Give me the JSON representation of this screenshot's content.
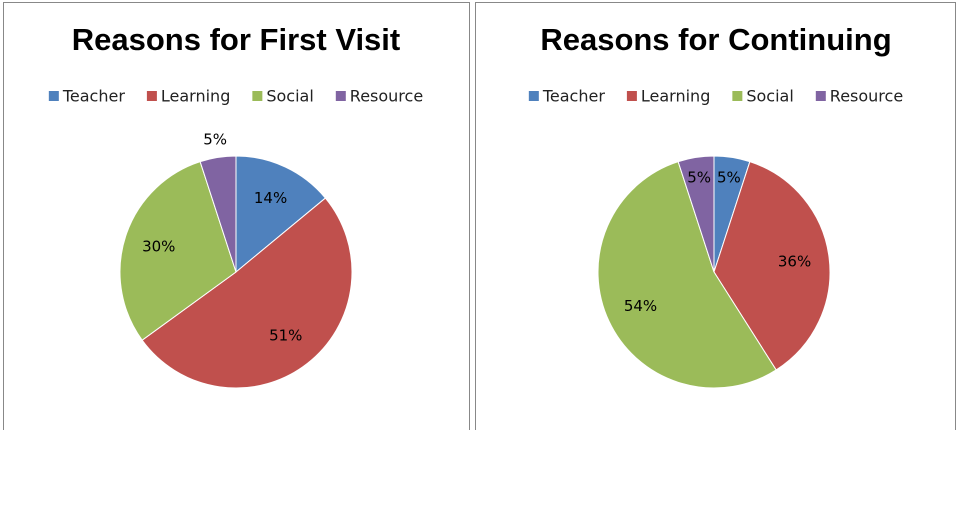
{
  "chart_data": [
    {
      "type": "pie",
      "title": "Reasons for First Visit",
      "categories": [
        "Teacher",
        "Learning",
        "Social",
        "Resource"
      ],
      "values": [
        14,
        51,
        30,
        5
      ],
      "value_labels": [
        "14%",
        "51%",
        "30%",
        "5%"
      ],
      "colors": [
        "#4f81bd",
        "#c0504d",
        "#9bbb59",
        "#8064a2"
      ]
    },
    {
      "type": "pie",
      "title": "Reasons for Continuing",
      "categories": [
        "Teacher",
        "Learning",
        "Social",
        "Resource"
      ],
      "values": [
        5,
        36,
        54,
        5
      ],
      "value_labels": [
        "5%",
        "36%",
        "54%",
        "5%"
      ],
      "colors": [
        "#4f81bd",
        "#c0504d",
        "#9bbb59",
        "#8064a2"
      ]
    }
  ]
}
